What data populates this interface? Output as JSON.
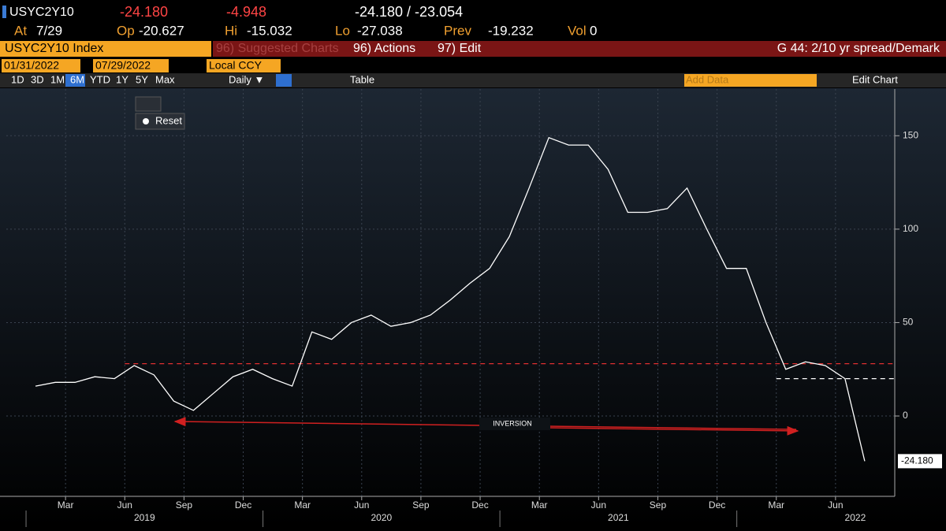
{
  "header": {
    "ticker": "USYC2Y10",
    "last": "-24.180",
    "change": "-4.948",
    "bid_ask": "-24.180 / -23.054",
    "stats": [
      {
        "label": "At",
        "value": "7/29"
      },
      {
        "label": "Op",
        "value": "-20.627"
      },
      {
        "label": "Hi",
        "value": "-15.032"
      },
      {
        "label": "Lo",
        "value": "-27.038"
      },
      {
        "label": "Prev",
        "value": "-19.232"
      },
      {
        "label": "Vol",
        "value": "0"
      }
    ]
  },
  "toolbar": {
    "security": "USYC2Y10 Index",
    "suggested": "96) Suggested Charts",
    "actions": "96) Actions",
    "edit": "97) Edit",
    "chart_name": "G 44: 2/10 yr spread/Demark",
    "start_date": "01/31/2022",
    "end_date": "07/29/2022",
    "currency": "Local CCY",
    "periods": [
      "1D",
      "3D",
      "1M",
      "6M",
      "YTD",
      "1Y",
      "5Y",
      "Max"
    ],
    "frequency": "Daily ▼",
    "table": "Table",
    "add_data": "Add Data",
    "edit_chart": "Edit Chart",
    "reset": "Reset"
  },
  "chart_data": {
    "type": "line",
    "color": "#ffffff",
    "x": [
      "2019-01",
      "2019-02",
      "2019-03",
      "2019-04",
      "2019-05",
      "2019-06",
      "2019-07",
      "2019-08",
      "2019-09",
      "2019-10",
      "2019-11",
      "2019-12",
      "2020-01",
      "2020-02",
      "2020-03",
      "2020-04",
      "2020-05",
      "2020-06",
      "2020-07",
      "2020-08",
      "2020-09",
      "2020-10",
      "2020-11",
      "2020-12",
      "2021-01",
      "2021-02",
      "2021-03",
      "2021-04",
      "2021-05",
      "2021-06",
      "2021-07",
      "2021-08",
      "2021-09",
      "2021-10",
      "2021-11",
      "2021-12",
      "2022-01",
      "2022-02",
      "2022-03",
      "2022-04",
      "2022-05",
      "2022-06",
      "2022-07"
    ],
    "values": [
      16,
      18,
      18,
      21,
      20,
      27,
      22,
      8,
      3,
      12,
      21,
      25,
      20,
      16,
      45,
      41,
      50,
      54,
      48,
      50,
      54,
      62,
      71,
      79,
      96,
      122,
      149,
      145,
      145,
      132,
      109,
      109,
      111,
      122,
      100,
      79,
      79,
      50,
      25,
      29,
      27,
      20,
      -24.18
    ],
    "last_value_label": "-24.180",
    "xlim": [
      "2018-12",
      "2022-09"
    ],
    "xticks": [
      {
        "value": "2019-03",
        "label": "Mar"
      },
      {
        "value": "2019-06",
        "label": "Jun"
      },
      {
        "value": "2019-09",
        "label": "Sep"
      },
      {
        "value": "2019-12",
        "label": "Dec"
      },
      {
        "value": "2020-03",
        "label": "Mar"
      },
      {
        "value": "2020-06",
        "label": "Jun"
      },
      {
        "value": "2020-09",
        "label": "Sep"
      },
      {
        "value": "2020-12",
        "label": "Dec"
      },
      {
        "value": "2021-03",
        "label": "Mar"
      },
      {
        "value": "2021-06",
        "label": "Jun"
      },
      {
        "value": "2021-09",
        "label": "Sep"
      },
      {
        "value": "2021-12",
        "label": "Dec"
      },
      {
        "value": "2022-03",
        "label": "Mar"
      },
      {
        "value": "2022-06",
        "label": "Jun"
      }
    ],
    "years": [
      2019,
      2020,
      2021,
      2022
    ],
    "ylim": [
      -43,
      175
    ],
    "yticks": [
      0,
      50,
      100,
      150
    ],
    "grid": true,
    "reference_lines": [
      {
        "value": 28,
        "color": "#e03030",
        "from": "2019-06",
        "to": "2022-09"
      },
      {
        "value": 20,
        "color": "#ffffff",
        "from": "2022-03",
        "to": "2022-09"
      }
    ],
    "annotation": "INVERSION"
  }
}
